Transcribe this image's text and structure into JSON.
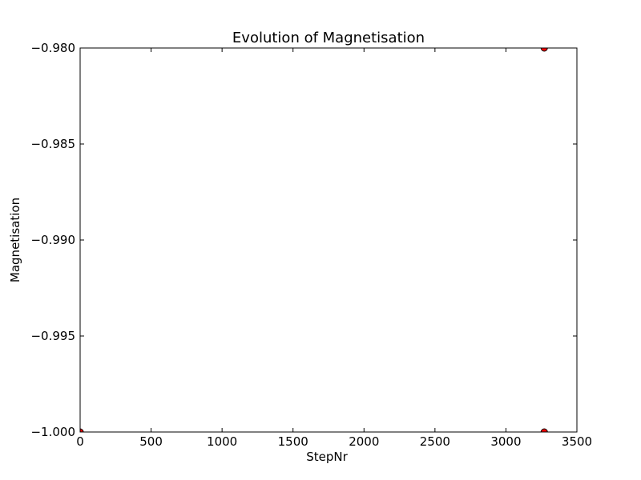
{
  "chart_data": {
    "type": "scatter",
    "title": "Evolution of Magnetisation",
    "xlabel": "StepNr",
    "ylabel": "Magnetisation",
    "xlim": [
      0,
      3500
    ],
    "ylim": [
      -1.0,
      -0.98
    ],
    "x_ticks": [
      0,
      500,
      1000,
      1500,
      2000,
      2500,
      3000,
      3500
    ],
    "x_tick_labels": [
      "0",
      "500",
      "1000",
      "1500",
      "2000",
      "2500",
      "3000",
      "3500"
    ],
    "y_ticks": [
      -0.98,
      -0.985,
      -0.99,
      -0.995,
      -1.0
    ],
    "y_tick_labels": [
      "−0.980",
      "−0.985",
      "−0.990",
      "−0.995",
      "−1.000"
    ],
    "grid": false,
    "legend": "none",
    "series": [
      {
        "color": "#ff0000",
        "points": [
          {
            "x": 0,
            "y": -1.0
          },
          {
            "x": 3270,
            "y": -0.98
          },
          {
            "x": 3270,
            "y": -1.0
          }
        ]
      }
    ]
  }
}
